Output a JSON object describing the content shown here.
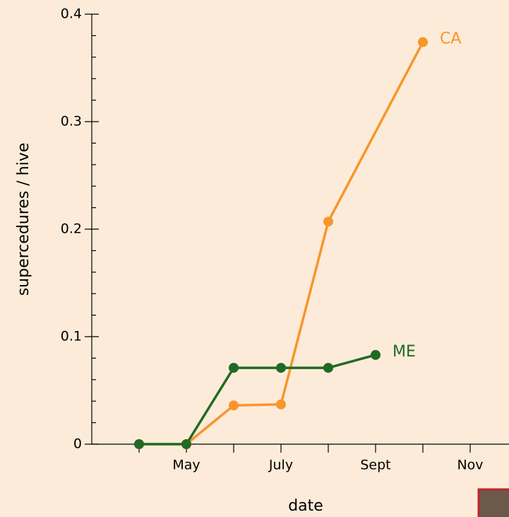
{
  "chart_data": {
    "type": "line",
    "categories": [
      null,
      "May",
      null,
      "July",
      null,
      "Sept",
      null,
      "Nov"
    ],
    "series": [
      {
        "name": "CA",
        "color": "#f7962b",
        "values": [
          0,
          0,
          0.036,
          0.037,
          0.207,
          null,
          0.374,
          null
        ]
      },
      {
        "name": "ME",
        "color": "#1f6b24",
        "values": [
          0,
          0,
          0.071,
          0.071,
          0.071,
          0.083,
          null,
          null
        ]
      }
    ],
    "xlabel": "date",
    "ylabel": "supercedures / hive",
    "ylim": [
      0,
      0.4
    ],
    "yticks": [
      0,
      0.1,
      0.2,
      0.3,
      0.4
    ],
    "yminorticks": [
      0.02,
      0.04,
      0.06,
      0.08,
      0.12,
      0.14,
      0.16,
      0.18,
      0.22,
      0.24,
      0.26,
      0.28,
      0.32,
      0.34,
      0.36,
      0.38
    ]
  }
}
